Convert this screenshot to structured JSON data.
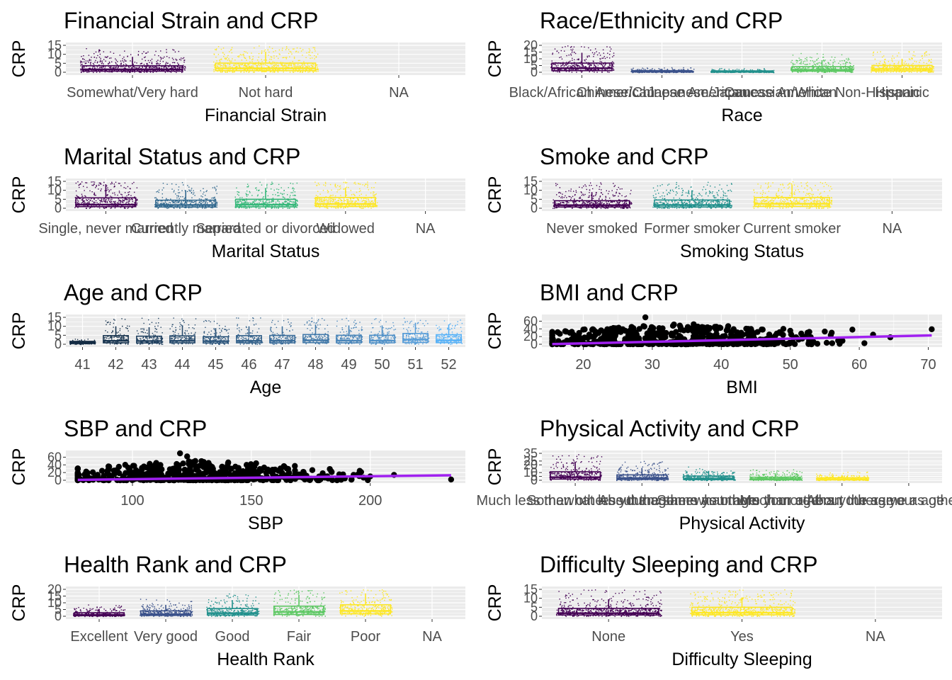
{
  "palette": {
    "viridis2": [
      "#440154",
      "#FDE725"
    ],
    "viridis3": [
      "#440154",
      "#21908C",
      "#FDE725"
    ],
    "viridis4": [
      "#440154",
      "#31688E",
      "#35B779",
      "#FDE725"
    ],
    "viridis5": [
      "#440154",
      "#3B528B",
      "#21908C",
      "#5DC863",
      "#FDE725"
    ],
    "blues12": [
      "#132B43",
      "#1A3651",
      "#20405F",
      "#274B6D",
      "#2D567C",
      "#34628B",
      "#3B6D9A",
      "#4279A9",
      "#4985B9",
      "#5091C8",
      "#579DD8",
      "#56B1F7"
    ],
    "fit_line": "#A020F0",
    "panel_bg": "#EBEBEB",
    "point": "#000000"
  },
  "chart_data": [
    {
      "type": "box",
      "title": "Financial Strain and CRP",
      "xlabel": "Financial Strain",
      "ylabel": "CRP",
      "categories": [
        "Somewhat/Very hard",
        "Not hard",
        "NA"
      ],
      "ylim": [
        0,
        15
      ],
      "yticks": [
        0,
        5,
        10,
        15
      ],
      "boxes": [
        {
          "category": "Somewhat/Very hard",
          "q1": 0.6,
          "median": 1.6,
          "q3": 3.6,
          "whisker_high": 8.6
        },
        {
          "category": "Not hard",
          "q1": 0.9,
          "median": 2.2,
          "q3": 5.1,
          "whisker_high": 11.5
        }
      ],
      "palette": "viridis2"
    },
    {
      "type": "box",
      "title": "Race/Ethnicity and CRP",
      "xlabel": "Race",
      "ylabel": "CRP",
      "categories": [
        "Black/African American",
        "Chinese/Chinese American",
        "Japanese/Japanese American",
        "Caucasian/White Non-Hispanic",
        "Hispanic"
      ],
      "ylim": [
        0,
        20
      ],
      "yticks": [
        0,
        5,
        10,
        15,
        20
      ],
      "boxes": [
        {
          "category": "Black/African American",
          "q1": 1.2,
          "median": 3.0,
          "q3": 6.8,
          "whisker_high": 14.5
        },
        {
          "category": "Chinese/Chinese American",
          "q1": 0.3,
          "median": 0.6,
          "q3": 1.2,
          "whisker_high": 2.5
        },
        {
          "category": "Japanese/Japanese American",
          "q1": 0.2,
          "median": 0.5,
          "q3": 1.0,
          "whisker_high": 2.0
        },
        {
          "category": "Caucasian/White Non-Hispanic",
          "q1": 0.8,
          "median": 1.8,
          "q3": 4.2,
          "whisker_high": 9.0
        },
        {
          "category": "Hispanic",
          "q1": 1.0,
          "median": 2.4,
          "q3": 5.0,
          "whisker_high": 10.0
        }
      ],
      "palette": "viridis5"
    },
    {
      "type": "box",
      "title": "Marital Status and CRP",
      "xlabel": "Marital Status",
      "ylabel": "CRP",
      "categories": [
        "Single, never married",
        "Currently married",
        "Separated or divorced",
        "Widowed",
        "NA"
      ],
      "ylim": [
        0,
        15
      ],
      "yticks": [
        0,
        5,
        10,
        15
      ],
      "boxes": [
        {
          "category": "Single, never married",
          "q1": 0.9,
          "median": 2.0,
          "q3": 5.8,
          "whisker_high": 13.0
        },
        {
          "category": "Currently married",
          "q1": 0.7,
          "median": 1.8,
          "q3": 4.5,
          "whisker_high": 10.0
        },
        {
          "category": "Separated or divorced",
          "q1": 0.8,
          "median": 2.0,
          "q3": 5.0,
          "whisker_high": 11.0
        },
        {
          "category": "Widowed",
          "q1": 1.0,
          "median": 2.4,
          "q3": 6.0,
          "whisker_high": 11.5
        }
      ],
      "palette": "viridis4"
    },
    {
      "type": "box",
      "title": "Smoke and CRP",
      "xlabel": "Smoking Status",
      "ylabel": "CRP",
      "categories": [
        "Never smoked",
        "Former smoker",
        "Current smoker",
        "NA"
      ],
      "ylim": [
        0,
        15
      ],
      "yticks": [
        0,
        5,
        10,
        15
      ],
      "boxes": [
        {
          "category": "Never smoked",
          "q1": 0.7,
          "median": 1.7,
          "q3": 4.2,
          "whisker_high": 9.0
        },
        {
          "category": "Former smoker",
          "q1": 0.7,
          "median": 1.8,
          "q3": 4.6,
          "whisker_high": 10.0
        },
        {
          "category": "Current smoker",
          "q1": 1.0,
          "median": 2.5,
          "q3": 6.0,
          "whisker_high": 13.0
        }
      ],
      "palette": "viridis3"
    },
    {
      "type": "box",
      "title": "Age and CRP",
      "xlabel": "Age",
      "ylabel": "CRP",
      "categories": [
        "41",
        "42",
        "43",
        "44",
        "45",
        "46",
        "47",
        "48",
        "49",
        "50",
        "51",
        "52"
      ],
      "ylim": [
        0,
        15
      ],
      "yticks": [
        0,
        5,
        10,
        15
      ],
      "boxes": [
        {
          "category": "41",
          "q1": 0.5,
          "median": 1.0,
          "q3": 1.6,
          "whisker_high": 2.0
        },
        {
          "category": "42",
          "q1": 0.8,
          "median": 1.9,
          "q3": 4.8,
          "whisker_high": 10.0
        },
        {
          "category": "43",
          "q1": 0.7,
          "median": 1.8,
          "q3": 4.5,
          "whisker_high": 9.5
        },
        {
          "category": "44",
          "q1": 0.8,
          "median": 1.9,
          "q3": 4.7,
          "whisker_high": 10.0
        },
        {
          "category": "45",
          "q1": 0.7,
          "median": 1.7,
          "q3": 4.2,
          "whisker_high": 9.0
        },
        {
          "category": "46",
          "q1": 0.8,
          "median": 1.9,
          "q3": 4.8,
          "whisker_high": 10.0
        },
        {
          "category": "47",
          "q1": 0.8,
          "median": 2.0,
          "q3": 4.9,
          "whisker_high": 10.0
        },
        {
          "category": "48",
          "q1": 0.9,
          "median": 2.2,
          "q3": 5.4,
          "whisker_high": 11.0
        },
        {
          "category": "49",
          "q1": 0.8,
          "median": 2.0,
          "q3": 5.0,
          "whisker_high": 10.5
        },
        {
          "category": "50",
          "q1": 0.8,
          "median": 2.0,
          "q3": 5.0,
          "whisker_high": 10.5
        },
        {
          "category": "51",
          "q1": 1.0,
          "median": 2.6,
          "q3": 6.0,
          "whisker_high": 12.0
        },
        {
          "category": "52",
          "q1": 0.9,
          "median": 2.2,
          "q3": 5.3,
          "whisker_high": 11.0
        }
      ],
      "palette": "blues12"
    },
    {
      "type": "scatter",
      "title": "BMI and CRP",
      "xlabel": "BMI",
      "ylabel": "CRP",
      "xlim": [
        14,
        72
      ],
      "xticks": [
        20,
        30,
        40,
        50,
        60,
        70
      ],
      "ylim": [
        0,
        70
      ],
      "yticks": [
        0,
        20,
        40,
        60
      ],
      "fit_line": {
        "x": [
          15.5,
          70.5
        ],
        "y": [
          0.5,
          23
        ]
      },
      "highlight_points": [
        {
          "x": 29,
          "y": 70
        },
        {
          "x": 70.5,
          "y": 39
        },
        {
          "x": 64.5,
          "y": 18
        },
        {
          "x": 62,
          "y": 25
        },
        {
          "x": 59,
          "y": 38
        },
        {
          "x": 56,
          "y": 30
        },
        {
          "x": 55,
          "y": 33
        },
        {
          "x": 52.5,
          "y": 30
        },
        {
          "x": 50,
          "y": 35
        },
        {
          "x": 49,
          "y": 40
        },
        {
          "x": 46,
          "y": 38
        },
        {
          "x": 41,
          "y": 47
        },
        {
          "x": 36,
          "y": 52
        },
        {
          "x": 33,
          "y": 48
        },
        {
          "x": 27,
          "y": 45
        },
        {
          "x": 24,
          "y": 40
        },
        {
          "x": 20,
          "y": 38
        },
        {
          "x": 38,
          "y": 44
        },
        {
          "x": 31,
          "y": 42
        }
      ]
    },
    {
      "type": "scatter",
      "title": "SBP and CRP",
      "xlabel": "SBP",
      "ylabel": "CRP",
      "xlim": [
        72,
        240
      ],
      "xticks": [
        100,
        150,
        200
      ],
      "ylim": [
        0,
        70
      ],
      "yticks": [
        0,
        20,
        40,
        60
      ],
      "fit_line": {
        "x": [
          77,
          234
        ],
        "y": [
          1,
          13
        ]
      },
      "highlight_points": [
        {
          "x": 120,
          "y": 70
        },
        {
          "x": 123,
          "y": 62
        },
        {
          "x": 234,
          "y": 2
        },
        {
          "x": 210,
          "y": 14
        },
        {
          "x": 200,
          "y": 10
        },
        {
          "x": 193,
          "y": 14
        },
        {
          "x": 180,
          "y": 18
        },
        {
          "x": 152,
          "y": 44
        },
        {
          "x": 140,
          "y": 38
        },
        {
          "x": 132,
          "y": 45
        },
        {
          "x": 110,
          "y": 45
        },
        {
          "x": 90,
          "y": 28
        },
        {
          "x": 104,
          "y": 32
        },
        {
          "x": 165,
          "y": 30
        },
        {
          "x": 148,
          "y": 40
        }
      ]
    },
    {
      "type": "box",
      "title": "Physical Activity and CRP",
      "xlabel": "Physical Activity",
      "ylabel": "CRP",
      "categories": [
        "Much less than others your age",
        "Somewhat less than others your age",
        "About the same as others your age",
        "Somewhat more than others your age",
        "Much more than others your age",
        "NA"
      ],
      "tick_label_display": [
        "Much less than others your age",
        "Somewhat less than others your age",
        "About the same as others your age",
        "Somewhat more than others your age",
        "Much more than others your age",
        "About the same as others your a"
      ],
      "ylim": [
        0,
        35
      ],
      "yticks": [
        0,
        5,
        10,
        20,
        25,
        35
      ],
      "boxes": [
        {
          "category": "Much less than others your age",
          "q1": 1.5,
          "median": 4.0,
          "q3": 11.0,
          "whisker_high": 24.0
        },
        {
          "category": "Somewhat less than others your age",
          "q1": 1.0,
          "median": 2.8,
          "q3": 7.0,
          "whisker_high": 16.0
        },
        {
          "category": "About the same as others your age",
          "q1": 0.8,
          "median": 2.0,
          "q3": 5.5,
          "whisker_high": 12.0
        },
        {
          "category": "Somewhat more than others your age",
          "q1": 0.6,
          "median": 1.5,
          "q3": 4.0,
          "whisker_high": 9.0
        },
        {
          "category": "Much more than others your age",
          "q1": 0.5,
          "median": 1.2,
          "q3": 3.2,
          "whisker_high": 7.0
        }
      ],
      "palette": "viridis5"
    },
    {
      "type": "box",
      "title": "Health Rank and CRP",
      "xlabel": "Health Rank",
      "ylabel": "CRP",
      "categories": [
        "Excellent",
        "Very good",
        "Good",
        "Fair",
        "Poor",
        "NA"
      ],
      "ylim": [
        0,
        20
      ],
      "yticks": [
        0,
        5,
        10,
        15,
        20
      ],
      "boxes": [
        {
          "category": "Excellent",
          "q1": 0.4,
          "median": 1.0,
          "q3": 2.6,
          "whisker_high": 5.5
        },
        {
          "category": "Very good",
          "q1": 0.6,
          "median": 1.5,
          "q3": 4.0,
          "whisker_high": 8.5
        },
        {
          "category": "Good",
          "q1": 0.9,
          "median": 2.3,
          "q3": 5.7,
          "whisker_high": 12.0
        },
        {
          "category": "Fair",
          "q1": 1.3,
          "median": 3.2,
          "q3": 7.5,
          "whisker_high": 16.0
        },
        {
          "category": "Poor",
          "q1": 1.8,
          "median": 4.0,
          "q3": 8.5,
          "whisker_high": 17.0
        }
      ],
      "palette": "viridis5"
    },
    {
      "type": "box",
      "title": "Difficulty Sleeping and CRP",
      "xlabel": "Difficulty Sleeping",
      "ylabel": "CRP",
      "categories": [
        "None",
        "Yes",
        "NA"
      ],
      "ylim": [
        0,
        15
      ],
      "yticks": [
        0,
        5,
        10,
        15
      ],
      "boxes": [
        {
          "category": "None",
          "q1": 0.7,
          "median": 1.7,
          "q3": 4.4,
          "whisker_high": 9.5
        },
        {
          "category": "Yes",
          "q1": 0.8,
          "median": 2.0,
          "q3": 5.0,
          "whisker_high": 10.5
        }
      ],
      "palette": "viridis2"
    }
  ]
}
